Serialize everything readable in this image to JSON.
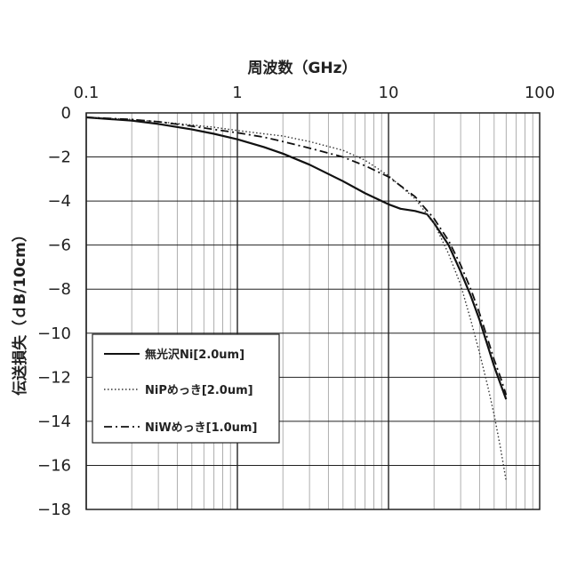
{
  "chart_data": {
    "type": "line",
    "xscale": "log",
    "xlabel": "周波数（GHz）",
    "ylabel": "伝送損失（ｄB/10cm）",
    "xlim": [
      0.1,
      100
    ],
    "ylim": [
      -18,
      0
    ],
    "x_tick_labels": [
      "0.1",
      "1",
      "10",
      "100"
    ],
    "y_tick_labels": [
      "0",
      "−2",
      "−4",
      "−6",
      "−8",
      "−10",
      "−12",
      "−14",
      "−16",
      "−18"
    ],
    "grid": true,
    "legend_position": "bottom-left",
    "series": [
      {
        "name": "無光沢Ni[2.0um]",
        "style": "solid",
        "color": "#111111",
        "x": [
          0.1,
          0.2,
          0.3,
          0.5,
          0.7,
          1,
          1.5,
          2,
          3,
          5,
          7,
          10,
          12,
          15,
          18,
          20,
          25,
          30,
          35,
          40,
          45,
          50,
          55,
          60
        ],
        "y": [
          -0.2,
          -0.35,
          -0.5,
          -0.75,
          -0.95,
          -1.2,
          -1.55,
          -1.85,
          -2.35,
          -3.1,
          -3.65,
          -4.15,
          -4.35,
          -4.45,
          -4.6,
          -5.0,
          -6.0,
          -7.2,
          -8.3,
          -9.4,
          -10.5,
          -11.5,
          -12.3,
          -13.0
        ]
      },
      {
        "name": "NiPめっき[2.0um]",
        "style": "dotted",
        "color": "#333333",
        "x": [
          0.1,
          0.2,
          0.3,
          0.5,
          0.7,
          1,
          1.5,
          2,
          3,
          5,
          7,
          10,
          15,
          20,
          25,
          30,
          35,
          40,
          45,
          50,
          55,
          60
        ],
        "y": [
          -0.2,
          -0.3,
          -0.4,
          -0.55,
          -0.65,
          -0.8,
          -0.95,
          -1.05,
          -1.3,
          -1.7,
          -2.15,
          -2.85,
          -3.9,
          -5.0,
          -6.4,
          -7.8,
          -9.4,
          -10.9,
          -12.3,
          -13.7,
          -15.2,
          -16.7
        ]
      },
      {
        "name": "NiWめっき[1.0um]",
        "style": "dashdot",
        "color": "#111111",
        "x": [
          0.1,
          0.2,
          0.3,
          0.5,
          0.7,
          1,
          1.5,
          2,
          3,
          5,
          7,
          10,
          15,
          20,
          25,
          30,
          35,
          40,
          45,
          50,
          55,
          60
        ],
        "y": [
          -0.2,
          -0.3,
          -0.4,
          -0.6,
          -0.75,
          -0.9,
          -1.1,
          -1.3,
          -1.6,
          -2.0,
          -2.4,
          -2.9,
          -3.8,
          -4.8,
          -5.8,
          -6.9,
          -8.0,
          -9.1,
          -10.2,
          -11.2,
          -12.0,
          -12.8
        ]
      }
    ]
  }
}
